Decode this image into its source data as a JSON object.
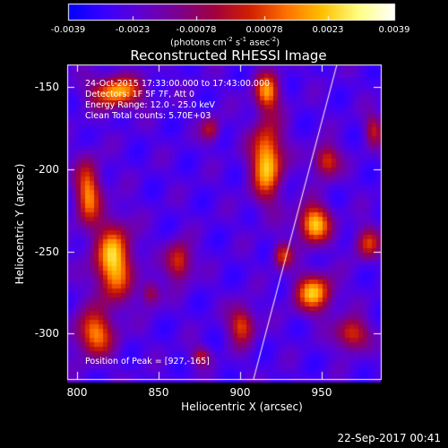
{
  "colorbar": {
    "ticks": [
      "-0.0039",
      "-0.0023",
      "-0.00078",
      "0.00078",
      "0.0023",
      "0.0039"
    ],
    "unit_base": "(photons cm",
    "unit_exp1": "-2",
    "unit_mid": " s",
    "unit_exp2": "-1",
    "unit_mid2": " asec",
    "unit_exp3": "-2",
    "unit_end": ")",
    "colors": [
      "#0000ff",
      "#3a00ff",
      "#6000d0",
      "#7a0090",
      "#a00040",
      "#d02000",
      "#ff7000",
      "#ffc000",
      "#ffff80",
      "#ffffff"
    ]
  },
  "title": "Reconstructed RHESSI Image",
  "info": {
    "line1": "24-Oct-2015 17:33:00.000 to 17:43:00.000",
    "line2": "Detectors: 1F 5F 7F, Att 0",
    "line3": "Energy Range: 12.0 - 25.0 keV",
    "line4": "Clean    Total counts: 5.70E+03",
    "peak": "Position of Peak = [927,-165]"
  },
  "axes": {
    "xlabel": "Heliocentric X (arcsec)",
    "ylabel": "Heliocentric Y (arcsec)",
    "xticks": [
      "800",
      "850",
      "900",
      "950"
    ],
    "yticks": [
      "-150",
      "-200",
      "-250",
      "-300"
    ]
  },
  "timestamp": "22-Sep-2017 00:41"
}
